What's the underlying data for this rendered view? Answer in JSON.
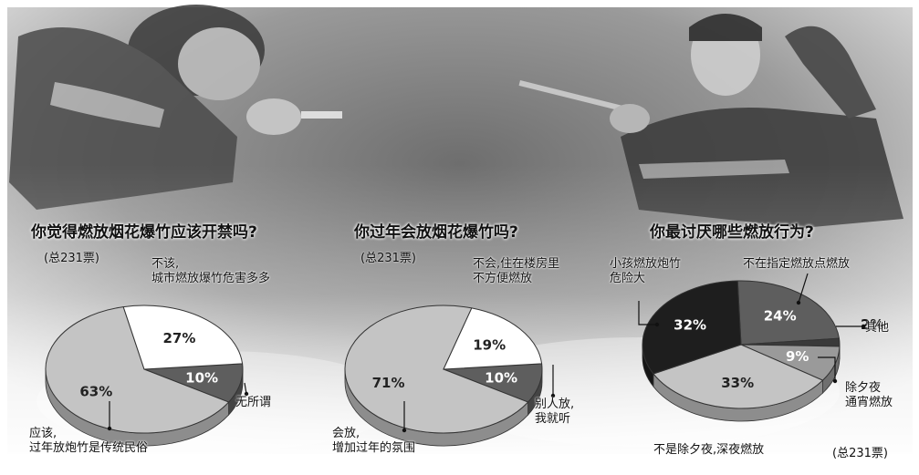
{
  "chart_data": [
    {
      "type": "pie",
      "title": "你觉得燃放烟花爆竹应该开禁吗?",
      "total": "(总231票)",
      "slices": [
        {
          "label": "应该,\n过年放炮竹是传统民俗",
          "value": 63,
          "text": "63%",
          "color": "#c4c4c4",
          "text_color": "#222"
        },
        {
          "label": "不该,\n城市燃放爆竹危害多多",
          "value": 27,
          "text": "27%",
          "color": "#ffffff",
          "text_color": "#222"
        },
        {
          "label": "无所谓",
          "value": 10,
          "text": "10%",
          "color": "#5e5e5e",
          "text_color": "#ffffff"
        }
      ]
    },
    {
      "type": "pie",
      "title": "你过年会放烟花爆竹吗?",
      "total": "(总231票)",
      "slices": [
        {
          "label": "会放,\n增加过年的氛围",
          "value": 71,
          "text": "71%",
          "color": "#c4c4c4",
          "text_color": "#222"
        },
        {
          "label": "不会,住在楼房里\n不方便燃放",
          "value": 19,
          "text": "19%",
          "color": "#ffffff",
          "text_color": "#222"
        },
        {
          "label": "别人放,\n我就听",
          "value": 10,
          "text": "10%",
          "color": "#5e5e5e",
          "text_color": "#ffffff"
        }
      ]
    },
    {
      "type": "pie",
      "title": "你最讨厌哪些燃放行为?",
      "total": "(总231票)",
      "slices": [
        {
          "label": "小孩燃放炮竹\n危险大",
          "value": 32,
          "text": "32%",
          "color": "#1e1e1e",
          "text_color": "#ffffff"
        },
        {
          "label": "不在指定燃放点燃放",
          "value": 24,
          "text": "24%",
          "color": "#5e5e5e",
          "text_color": "#ffffff"
        },
        {
          "label": "其他",
          "value": 2,
          "text": "2%",
          "color": "#3a3a3a",
          "text_color": "#222"
        },
        {
          "label": "除夕夜\n通宵燃放",
          "value": 9,
          "text": "9%",
          "color": "#9a9a9a",
          "text_color": "#ffffff"
        },
        {
          "label": "不是除夕夜,深夜燃放",
          "value": 33,
          "text": "33%",
          "color": "#c4c4c4",
          "text_color": "#222"
        }
      ]
    }
  ],
  "photo": {
    "description_icon": "photo-firecracker-icon"
  }
}
